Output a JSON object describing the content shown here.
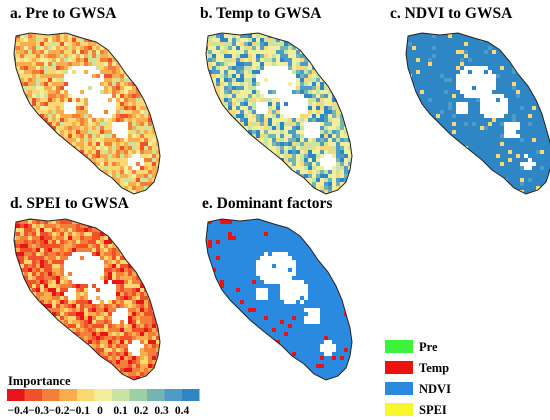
{
  "panels": [
    {
      "id": "a",
      "title": "a. Pre to GWSA",
      "scheme": "pre"
    },
    {
      "id": "b",
      "title": "b. Temp to GWSA",
      "scheme": "temp"
    },
    {
      "id": "c",
      "title": "c. NDVI to GWSA",
      "scheme": "ndvi"
    },
    {
      "id": "d",
      "title": "d. SPEI to GWSA",
      "scheme": "spei"
    },
    {
      "id": "e",
      "title": "e. Dominant factors",
      "scheme": "dominant"
    }
  ],
  "colorbar": {
    "title": "Importance",
    "colors": [
      "#e8141a",
      "#f0512b",
      "#f47f3a",
      "#f9ad4d",
      "#fcd873",
      "#f2ee9e",
      "#c9e4a2",
      "#9dcfa5",
      "#73b5b2",
      "#4d9bc6",
      "#2f86c4"
    ],
    "ticks": [
      "−0.4",
      "−0.3",
      "−0.2",
      "−0.1",
      "0",
      "0.1",
      "0.2",
      "0.3",
      "0.4"
    ]
  },
  "dominant_legend": [
    {
      "label": "Pre",
      "color": "#3df23a"
    },
    {
      "label": "Temp",
      "color": "#ee1111"
    },
    {
      "label": "NDVI",
      "color": "#2a8ae0"
    },
    {
      "label": "SPEI",
      "color": "#f7f72b"
    }
  ]
}
